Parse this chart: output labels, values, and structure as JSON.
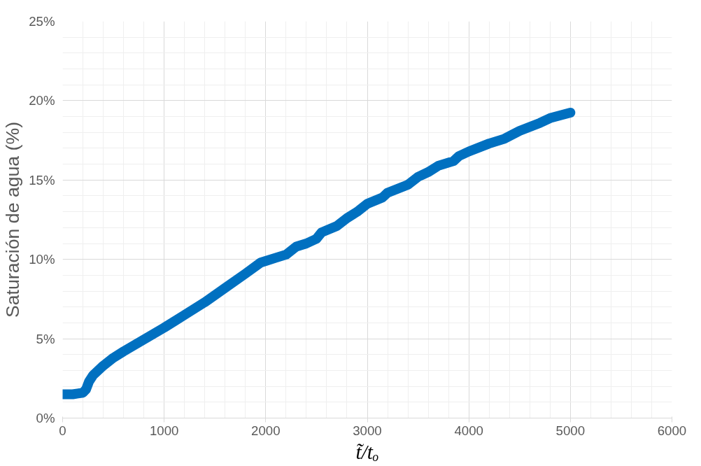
{
  "chart_data": {
    "type": "line",
    "xlabel": "t̃/tₒ",
    "ylabel": "Saturación de agua (%)",
    "xlim": [
      0,
      6000
    ],
    "xticks": [
      0,
      1000,
      2000,
      3000,
      4000,
      5000,
      6000
    ],
    "ylim": [
      0,
      25
    ],
    "yticks": [
      {
        "value": 0,
        "label": "0%"
      },
      {
        "value": 5,
        "label": "5%"
      },
      {
        "value": 10,
        "label": "10%"
      },
      {
        "value": 15,
        "label": "15%"
      },
      {
        "value": 20,
        "label": "20%"
      },
      {
        "value": 25,
        "label": "25%"
      }
    ],
    "grid": true,
    "marker": "none",
    "line_style": "solid",
    "series": [
      {
        "color": "#0070c0",
        "x": [
          0,
          100,
          150,
          200,
          230,
          260,
          300,
          400,
          500,
          600,
          800,
          1000,
          1200,
          1400,
          1600,
          1800,
          1950,
          2000,
          2100,
          2200,
          2300,
          2400,
          2500,
          2550,
          2700,
          2800,
          2900,
          3000,
          3150,
          3200,
          3400,
          3500,
          3600,
          3700,
          3850,
          3900,
          4000,
          4200,
          4350,
          4500,
          4700,
          4800,
          5000
        ],
        "values": [
          1.5,
          1.5,
          1.55,
          1.6,
          1.8,
          2.3,
          2.7,
          3.3,
          3.8,
          4.2,
          4.95,
          5.7,
          6.5,
          7.3,
          8.2,
          9.1,
          9.8,
          9.9,
          10.1,
          10.3,
          10.8,
          11.0,
          11.3,
          11.7,
          12.1,
          12.6,
          13.0,
          13.5,
          13.9,
          14.2,
          14.7,
          15.2,
          15.5,
          15.9,
          16.2,
          16.5,
          16.8,
          17.3,
          17.6,
          18.1,
          18.6,
          18.9,
          19.25
        ]
      }
    ]
  }
}
